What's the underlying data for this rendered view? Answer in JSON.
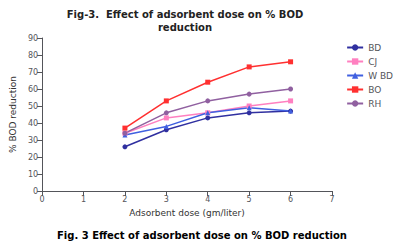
{
  "chart_data": {
    "type": "line",
    "title": "Fig-3.  Effect of adsorbent dose on % BOD\nreduction",
    "xlabel": "Adsorbent dose (gm/liter)",
    "ylabel": "% BOD reduction",
    "annotations": [
      "Fig. 3 Effect of adsorbent dose on % BOD reduction"
    ],
    "x": [
      2,
      3,
      4,
      5,
      6
    ],
    "series": [
      {
        "name": "BD",
        "color": "#3030A0",
        "marker": "circle",
        "values": [
          26,
          36,
          43,
          46,
          47
        ]
      },
      {
        "name": "CJ",
        "color": "#FF80C0",
        "marker": "square",
        "values": [
          34,
          43,
          46,
          50,
          53
        ]
      },
      {
        "name": "W BD",
        "color": "#4060E0",
        "marker": "triangle",
        "values": [
          33,
          38,
          46,
          49,
          47
        ]
      },
      {
        "name": "BO",
        "color": "#FF3030",
        "marker": "square",
        "values": [
          37,
          53,
          64,
          73,
          76
        ]
      },
      {
        "name": "RH",
        "color": "#9060A0",
        "marker": "circle",
        "values": [
          34,
          46,
          53,
          57,
          60
        ]
      }
    ],
    "xlim": [
      0,
      7
    ],
    "ylim": [
      0,
      90
    ],
    "xticks": [
      0,
      1,
      2,
      3,
      4,
      5,
      6,
      7
    ],
    "yticks": [
      0,
      10,
      20,
      30,
      40,
      50,
      60,
      70,
      80,
      90
    ],
    "grid": false,
    "legend": "right"
  }
}
